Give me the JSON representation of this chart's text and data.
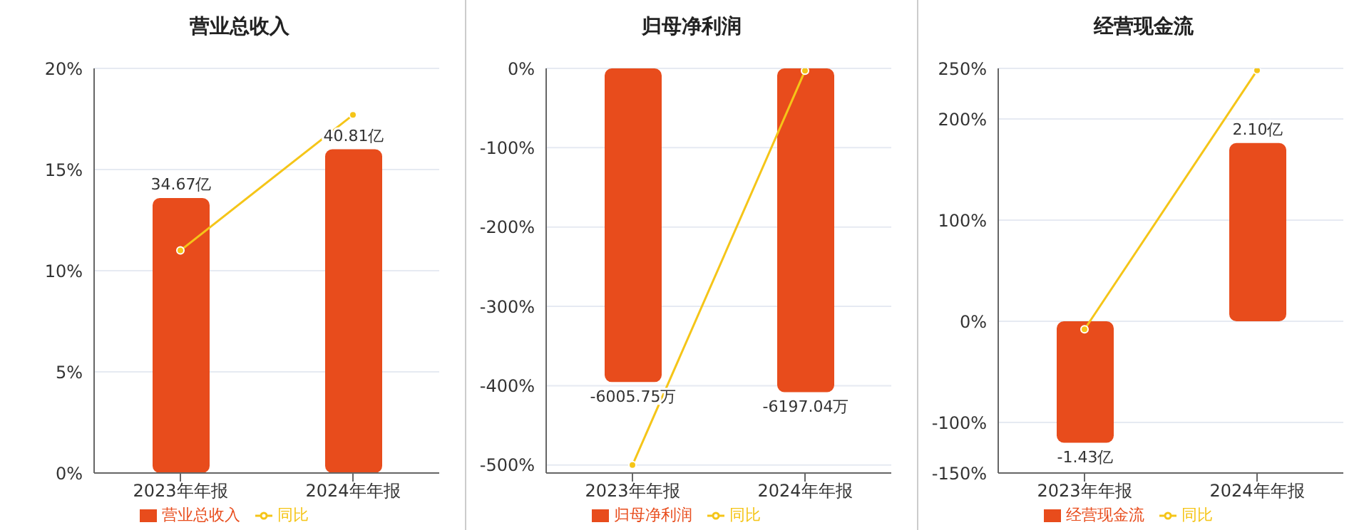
{
  "chart_data": [
    {
      "type": "bar",
      "title": "营业总收入",
      "categories": [
        "2023年年报",
        "2024年年报"
      ],
      "series": [
        {
          "name": "营业总收入",
          "axis": "y2",
          "color": "#e84c1c",
          "values": [
            34.67,
            40.81
          ],
          "value_labels": [
            "34.67亿",
            "40.81亿"
          ]
        },
        {
          "name": "同比",
          "type": "line",
          "color": "#f5c518",
          "values": [
            11,
            17.7
          ]
        }
      ],
      "ylim": [
        0,
        20
      ],
      "yticks": [
        {
          "value": 0,
          "label": "0%"
        },
        {
          "value": 5,
          "label": "5%"
        },
        {
          "value": 10,
          "label": "10%"
        },
        {
          "value": 15,
          "label": "15%"
        },
        {
          "value": 20,
          "label": "20%"
        }
      ],
      "grid": "y",
      "legend": "bottom",
      "marker": "circle"
    },
    {
      "type": "bar",
      "title": "归母净利润",
      "categories": [
        "2023年年报",
        "2024年年报"
      ],
      "series": [
        {
          "name": "归母净利润",
          "axis": "y2",
          "color": "#e84c1c",
          "values": [
            -6005.75,
            -6197.04
          ],
          "value_labels": [
            "-6005.75万",
            "-6197.04万"
          ]
        },
        {
          "name": "同比",
          "type": "line",
          "color": "#f5c518",
          "values": [
            -500,
            -3
          ]
        }
      ],
      "ylim": [
        -510,
        0
      ],
      "yticks": [
        {
          "value": -500,
          "label": "-500%"
        },
        {
          "value": -400,
          "label": "-400%"
        },
        {
          "value": -300,
          "label": "-300%"
        },
        {
          "value": -200,
          "label": "-200%"
        },
        {
          "value": -100,
          "label": "-100%"
        },
        {
          "value": 0,
          "label": "0%"
        }
      ],
      "grid": "y",
      "legend": "bottom",
      "marker": "circle"
    },
    {
      "type": "bar",
      "title": "经营现金流",
      "categories": [
        "2023年年报",
        "2024年年报"
      ],
      "series": [
        {
          "name": "经营现金流",
          "axis": "y2",
          "color": "#e84c1c",
          "values": [
            -1.43,
            2.1
          ],
          "value_labels": [
            "-1.43亿",
            "2.10亿"
          ]
        },
        {
          "name": "同比",
          "type": "line",
          "color": "#f5c518",
          "values": [
            -8,
            248
          ]
        }
      ],
      "ylim": [
        -150,
        250
      ],
      "yticks": [
        {
          "value": -150,
          "label": "-150%"
        },
        {
          "value": -100,
          "label": "-100%"
        },
        {
          "value": 0,
          "label": "0%"
        },
        {
          "value": 100,
          "label": "100%"
        },
        {
          "value": 200,
          "label": "200%"
        },
        {
          "value": 250,
          "label": "250%"
        }
      ],
      "grid": "y",
      "legend": "bottom",
      "marker": "circle"
    }
  ]
}
